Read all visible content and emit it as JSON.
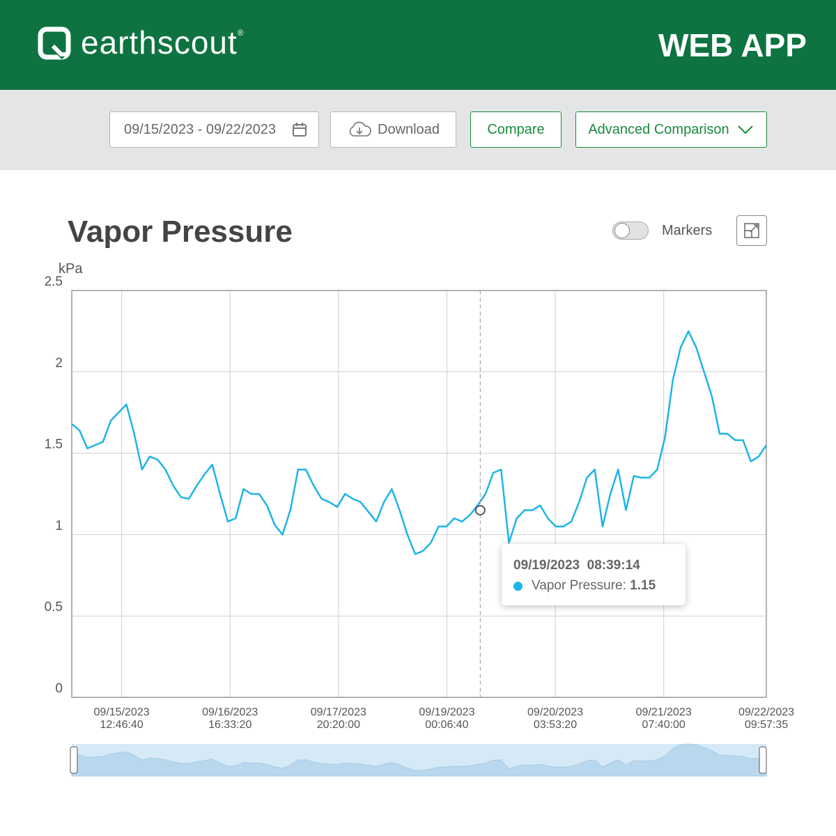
{
  "header": {
    "brand": "earthscout",
    "registered": "®",
    "product": "WEB APP"
  },
  "toolbar": {
    "date_range": "09/15/2023 - 09/22/2023",
    "download": "Download",
    "compare": "Compare",
    "advanced": "Advanced Comparison"
  },
  "controls": {
    "markers_label": "Markers",
    "markers": false
  },
  "chart_data": {
    "type": "line",
    "title": "Vapor Pressure",
    "y_label": "kPa",
    "x": [
      "2023-09-15T00:00:00",
      "2023-09-15T02:00:00",
      "2023-09-15T04:00:00",
      "2023-09-15T06:00:00",
      "2023-09-15T08:00:00",
      "2023-09-15T10:00:00",
      "2023-09-15T12:00:00",
      "2023-09-15T14:00:00",
      "2023-09-15T16:00:00",
      "2023-09-15T18:00:00",
      "2023-09-15T20:00:00",
      "2023-09-15T22:00:00",
      "2023-09-16T00:00:00",
      "2023-09-16T02:00:00",
      "2023-09-16T04:00:00",
      "2023-09-16T06:00:00",
      "2023-09-16T08:00:00",
      "2023-09-16T10:00:00",
      "2023-09-16T12:00:00",
      "2023-09-16T14:00:00",
      "2023-09-16T16:00:00",
      "2023-09-16T18:00:00",
      "2023-09-16T20:00:00",
      "2023-09-16T22:00:00",
      "2023-09-17T00:00:00",
      "2023-09-17T02:00:00",
      "2023-09-17T04:00:00",
      "2023-09-17T06:00:00",
      "2023-09-17T08:00:00",
      "2023-09-17T10:00:00",
      "2023-09-17T12:00:00",
      "2023-09-17T14:00:00",
      "2023-09-17T16:00:00",
      "2023-09-17T18:00:00",
      "2023-09-17T20:00:00",
      "2023-09-17T22:00:00",
      "2023-09-18T00:00:00",
      "2023-09-18T02:00:00",
      "2023-09-18T04:00:00",
      "2023-09-18T06:00:00",
      "2023-09-18T08:00:00",
      "2023-09-18T10:00:00",
      "2023-09-18T12:00:00",
      "2023-09-18T14:00:00",
      "2023-09-18T16:00:00",
      "2023-09-18T18:00:00",
      "2023-09-18T20:00:00",
      "2023-09-18T22:00:00",
      "2023-09-19T00:00:00",
      "2023-09-19T02:00:00",
      "2023-09-19T04:00:00",
      "2023-09-19T06:00:00",
      "2023-09-19T08:00:00",
      "2023-09-19T10:00:00",
      "2023-09-19T12:00:00",
      "2023-09-19T14:00:00",
      "2023-09-19T16:00:00",
      "2023-09-19T18:00:00",
      "2023-09-19T20:00:00",
      "2023-09-19T22:00:00",
      "2023-09-20T00:00:00",
      "2023-09-20T02:00:00",
      "2023-09-20T04:00:00",
      "2023-09-20T06:00:00",
      "2023-09-20T08:00:00",
      "2023-09-20T10:00:00",
      "2023-09-20T12:00:00",
      "2023-09-20T14:00:00",
      "2023-09-20T16:00:00",
      "2023-09-20T18:00:00",
      "2023-09-20T20:00:00",
      "2023-09-20T22:00:00",
      "2023-09-21T00:00:00",
      "2023-09-21T02:00:00",
      "2023-09-21T04:00:00",
      "2023-09-21T06:00:00",
      "2023-09-21T08:00:00",
      "2023-09-21T10:00:00",
      "2023-09-21T12:00:00",
      "2023-09-21T14:00:00",
      "2023-09-21T16:00:00",
      "2023-09-21T18:00:00",
      "2023-09-21T20:00:00",
      "2023-09-21T22:00:00",
      "2023-09-22T00:00:00",
      "2023-09-22T02:00:00",
      "2023-09-22T04:00:00",
      "2023-09-22T06:00:00",
      "2023-09-22T08:00:00",
      "2023-09-22T09:57:35"
    ],
    "series": [
      {
        "name": "Vapor Pressure",
        "color": "#1eb4e6",
        "values": [
          1.68,
          1.64,
          1.53,
          1.55,
          1.57,
          1.7,
          1.75,
          1.8,
          1.62,
          1.4,
          1.48,
          1.46,
          1.4,
          1.3,
          1.23,
          1.22,
          1.3,
          1.37,
          1.43,
          1.25,
          1.08,
          1.1,
          1.28,
          1.25,
          1.25,
          1.18,
          1.06,
          1.0,
          1.15,
          1.4,
          1.4,
          1.3,
          1.22,
          1.2,
          1.17,
          1.25,
          1.22,
          1.2,
          1.14,
          1.08,
          1.2,
          1.28,
          1.15,
          1.0,
          0.88,
          0.9,
          0.95,
          1.05,
          1.05,
          1.1,
          1.08,
          1.12,
          1.18,
          1.25,
          1.38,
          1.4,
          0.95,
          1.1,
          1.15,
          1.15,
          1.18,
          1.1,
          1.05,
          1.05,
          1.08,
          1.2,
          1.35,
          1.4,
          1.05,
          1.25,
          1.4,
          1.15,
          1.36,
          1.35,
          1.35,
          1.4,
          1.6,
          1.95,
          2.15,
          2.25,
          2.15,
          2.0,
          1.85,
          1.62,
          1.62,
          1.58,
          1.58,
          1.45,
          1.48,
          1.55
        ]
      }
    ],
    "xlim": [
      "2023-09-15T00:00:00",
      "2023-09-22T09:57:35"
    ],
    "xticks": [
      {
        "value": "2023-09-15T12:46:40",
        "label": "09/15/2023 12:46:40"
      },
      {
        "value": "2023-09-16T16:33:20",
        "label": "09/16/2023 16:33:20"
      },
      {
        "value": "2023-09-17T20:20:00",
        "label": "09/17/2023 20:20:00"
      },
      {
        "value": "2023-09-19T00:06:40",
        "label": "09/19/2023 00:06:40"
      },
      {
        "value": "2023-09-20T03:53:20",
        "label": "09/20/2023 03:53:20"
      },
      {
        "value": "2023-09-21T07:40:00",
        "label": "09/21/2023 07:40:00"
      },
      {
        "value": "2023-09-22T09:57:35",
        "label": "09/22/2023 09:57:35"
      }
    ],
    "ylim": [
      0,
      2.5
    ],
    "yticks": [
      0,
      0.5,
      1,
      1.5,
      2,
      2.5
    ],
    "grid": true,
    "tooltip": {
      "time": {
        "value": "2023-09-19T08:39:14",
        "label": "09/19/2023  08:39:14"
      },
      "label": "Vapor Pressure:",
      "value": 1.15
    }
  }
}
